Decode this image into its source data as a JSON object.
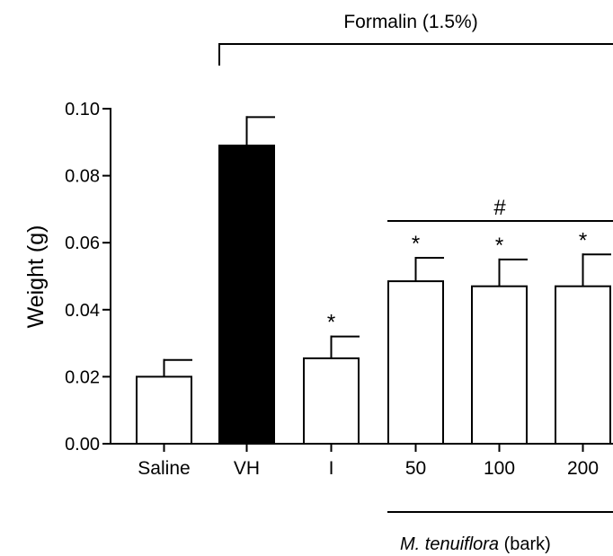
{
  "chart_data": {
    "type": "bar",
    "title": "",
    "xlabel": "",
    "ylabel": "Weight (g)",
    "ylim": [
      0,
      0.1
    ],
    "yticks": [
      "0.00",
      "0.02",
      "0.04",
      "0.06",
      "0.08",
      "0.10"
    ],
    "categories": [
      "Saline",
      "VH",
      "I",
      "50",
      "100",
      "200"
    ],
    "values": [
      0.02,
      0.089,
      0.0255,
      0.0485,
      0.047,
      0.047
    ],
    "errors": [
      0.005,
      0.0085,
      0.0065,
      0.007,
      0.008,
      0.0095
    ],
    "bar_fills": [
      "#ffffff",
      "#000000",
      "#ffffff",
      "#ffffff",
      "#ffffff",
      "#ffffff"
    ],
    "significance": [
      "",
      "",
      "*",
      "*",
      "*",
      "*"
    ],
    "group_bracket_label": "Formalin (1.5%)",
    "hash_label": "#",
    "group_label_italic": "M. tenuiflora",
    "group_label_rest": " (bark)",
    "grid": false
  }
}
